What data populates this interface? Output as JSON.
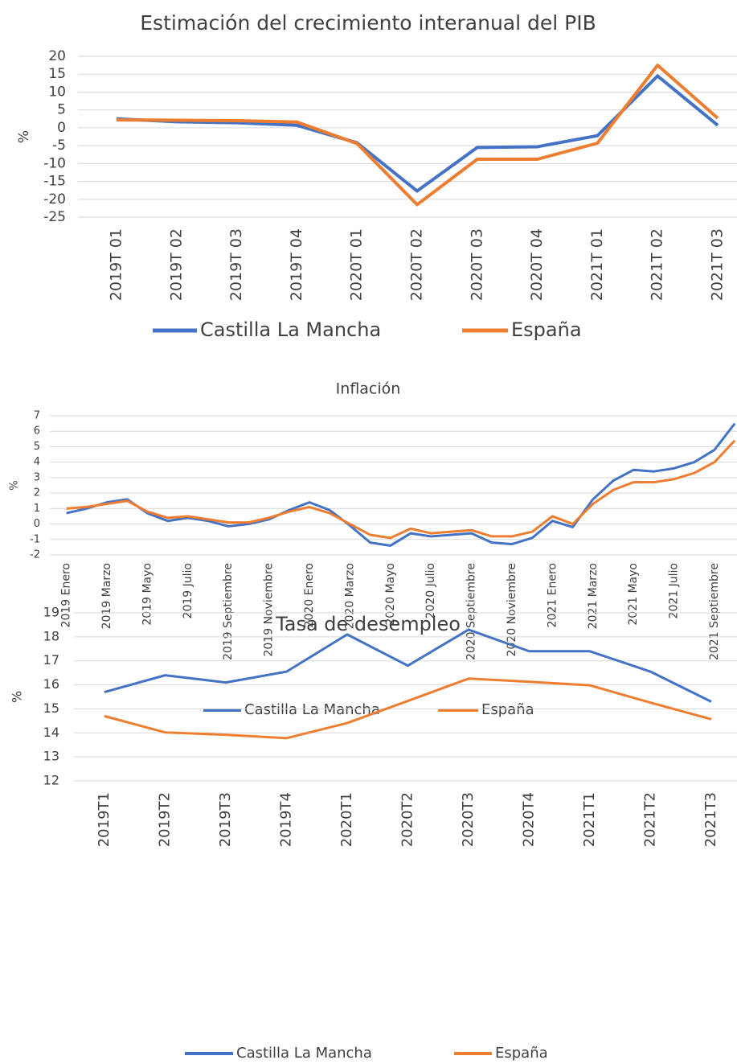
{
  "chart_data": [
    {
      "type": "line",
      "title": "Estimación del crecimiento interanual del PIB",
      "y_label": "%",
      "categories": [
        "2019T 01",
        "2019T 02",
        "2019T 03",
        "2019T 04",
        "2020T 01",
        "2020T 02",
        "2020T 03",
        "2020T 04",
        "2021T 01",
        "2021T 02",
        "2021T 03"
      ],
      "series": [
        {
          "name": "Castilla La Mancha",
          "color": "#4472c4",
          "values": [
            2.5,
            1.7,
            1.4,
            0.7,
            -4.2,
            -17.7,
            -5.5,
            -5.3,
            -2.2,
            14.5,
            0.7
          ]
        },
        {
          "name": "España",
          "color": "#ed7d31",
          "values": [
            2.2,
            2.1,
            2.0,
            1.6,
            -4.4,
            -21.5,
            -8.8,
            -8.8,
            -4.3,
            17.5,
            2.7
          ]
        }
      ],
      "ylim": [
        -25,
        20
      ],
      "yticks": [
        -25,
        -20,
        -15,
        -10,
        -5,
        0,
        5,
        10,
        15,
        20
      ],
      "grid": true,
      "legend": "bottom"
    },
    {
      "type": "line",
      "title": "Inflación",
      "y_label": "%",
      "categories": [
        "2019 Enero",
        null,
        "2019 Marzo",
        null,
        "2019 Mayo",
        null,
        "2019 Julio",
        null,
        "2019 Septiembre",
        null,
        "2019 Noviembre",
        null,
        "2020 Enero",
        null,
        "2020 Marzo",
        null,
        "2020 Mayo",
        null,
        "2020 Julio",
        null,
        "2020 Septiembre",
        null,
        "2020 Noviembre",
        null,
        "2021 Enero",
        null,
        "2021 Marzo",
        null,
        "2021 Mayo",
        null,
        "2021 Julio",
        null,
        "2021 Septiembre",
        null
      ],
      "series": [
        {
          "name": "Castilla La Mancha",
          "color": "#4472c4",
          "values": [
            0.7,
            1.0,
            1.4,
            1.6,
            0.7,
            0.2,
            0.4,
            0.2,
            -0.15,
            0.0,
            0.3,
            0.9,
            1.4,
            0.9,
            -0.1,
            -1.2,
            -1.4,
            -0.6,
            -0.8,
            -0.7,
            -0.6,
            -1.2,
            -1.3,
            -0.9,
            0.2,
            -0.2,
            1.6,
            2.8,
            3.5,
            3.4,
            3.6,
            4.0,
            4.8,
            6.5
          ]
        },
        {
          "name": "España",
          "color": "#ed7d31",
          "values": [
            1.0,
            1.1,
            1.3,
            1.5,
            0.8,
            0.4,
            0.5,
            0.3,
            0.1,
            0.1,
            0.4,
            0.8,
            1.1,
            0.7,
            0.0,
            -0.7,
            -0.9,
            -0.3,
            -0.6,
            -0.5,
            -0.4,
            -0.8,
            -0.8,
            -0.5,
            0.5,
            0.0,
            1.3,
            2.2,
            2.7,
            2.7,
            2.9,
            3.3,
            4.0,
            5.4
          ]
        }
      ],
      "ylim": [
        -2,
        7
      ],
      "yticks": [
        -2,
        -1,
        0,
        1,
        2,
        3,
        4,
        5,
        6,
        7
      ],
      "grid": true,
      "legend": "bottom"
    },
    {
      "type": "line",
      "title": "Tasa de desempleo",
      "y_label": "%",
      "categories": [
        "2019T1",
        "2019T2",
        "2019T3",
        "2019T4",
        "2020T1",
        "2020T2",
        "2020T3",
        "2020T4",
        "2021T1",
        "2021T2",
        "2021T3"
      ],
      "series": [
        {
          "name": "Castilla La Mancha",
          "color": "#4472c4",
          "values": [
            15.7,
            16.4,
            16.1,
            16.55,
            18.1,
            16.8,
            18.3,
            17.4,
            17.4,
            16.55,
            15.3
          ]
        },
        {
          "name": "España",
          "color": "#ed7d31",
          "values": [
            14.7,
            14.02,
            13.92,
            13.78,
            14.41,
            15.33,
            16.26,
            16.13,
            15.98,
            15.26,
            14.57
          ]
        }
      ],
      "ylim": [
        12,
        19
      ],
      "yticks": [
        12,
        13,
        14,
        15,
        16,
        17,
        18,
        19
      ],
      "grid": true,
      "legend": "bottom"
    }
  ]
}
